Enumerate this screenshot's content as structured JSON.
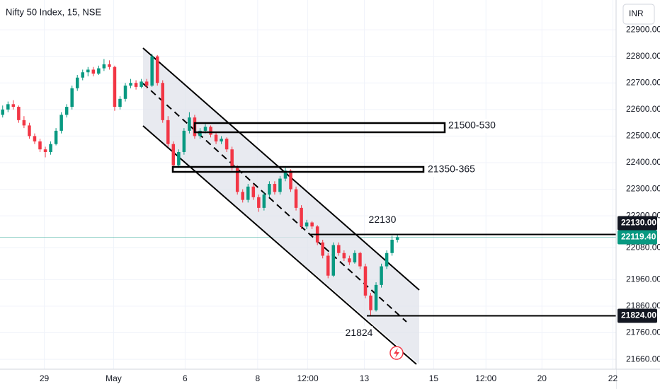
{
  "chart_data": {
    "type": "candlestick",
    "title": "Nifty 50 Index, 15, NSE",
    "currency": "INR",
    "up_color": "#089981",
    "down_color": "#f23645",
    "xlim": [
      -0.5,
      115
    ],
    "ylim": [
      21623,
      23012
    ],
    "xticks": [
      {
        "value": 7.8,
        "label": "29"
      },
      {
        "value": 20.8,
        "label": "May"
      },
      {
        "value": 34.2,
        "label": "6"
      },
      {
        "value": 47.8,
        "label": "8"
      },
      {
        "value": 57.2,
        "label": "12:00"
      },
      {
        "value": 67.8,
        "label": "13"
      },
      {
        "value": 80.8,
        "label": "15"
      },
      {
        "value": 90.6,
        "label": "12:00"
      },
      {
        "value": 101.1,
        "label": "20"
      },
      {
        "value": 114.4,
        "label": "22"
      }
    ],
    "yticks": [
      {
        "value": 22900,
        "label": "22900.00"
      },
      {
        "value": 22800,
        "label": "22800.00"
      },
      {
        "value": 22700,
        "label": "22700.00"
      },
      {
        "value": 22600,
        "label": "22600.00"
      },
      {
        "value": 22500,
        "label": "22500.00"
      },
      {
        "value": 22400,
        "label": "22400.00"
      },
      {
        "value": 22300,
        "label": "22300.00"
      },
      {
        "value": 22200,
        "label": "22200.00"
      },
      {
        "value": 22080,
        "label": "22080.00"
      },
      {
        "value": 21960,
        "label": "21960.00"
      },
      {
        "value": 21860,
        "label": "21860.00"
      },
      {
        "value": 21760,
        "label": "21760.00"
      },
      {
        "value": 21660,
        "label": "21660.00"
      }
    ],
    "candles": [
      [
        22580,
        22615,
        22570,
        22600
      ],
      [
        22600,
        22630,
        22590,
        22620
      ],
      [
        22620,
        22635,
        22600,
        22610
      ],
      [
        22610,
        22615,
        22550,
        22560
      ],
      [
        22560,
        22575,
        22530,
        22540
      ],
      [
        22540,
        22550,
        22490,
        22500
      ],
      [
        22500,
        22510,
        22470,
        22480
      ],
      [
        22480,
        22490,
        22440,
        22450
      ],
      [
        22450,
        22460,
        22420,
        22440
      ],
      [
        22440,
        22480,
        22430,
        22470
      ],
      [
        22470,
        22530,
        22465,
        22520
      ],
      [
        22520,
        22590,
        22510,
        22580
      ],
      [
        22580,
        22620,
        22570,
        22610
      ],
      [
        22610,
        22690,
        22600,
        22680
      ],
      [
        22680,
        22730,
        22670,
        22720
      ],
      [
        22720,
        22750,
        22710,
        22740
      ],
      [
        22740,
        22760,
        22725,
        22750
      ],
      [
        22750,
        22760,
        22725,
        22735
      ],
      [
        22735,
        22765,
        22730,
        22755
      ],
      [
        22755,
        22790,
        22745,
        22770
      ],
      [
        22770,
        22785,
        22750,
        22760
      ],
      [
        22760,
        22765,
        22595,
        22610
      ],
      [
        22610,
        22650,
        22600,
        22640
      ],
      [
        22640,
        22700,
        22630,
        22690
      ],
      [
        22690,
        22715,
        22680,
        22700
      ],
      [
        22700,
        22710,
        22675,
        22685
      ],
      [
        22685,
        22715,
        22680,
        22705
      ],
      [
        22705,
        22715,
        22680,
        22690
      ],
      [
        22690,
        22810,
        22685,
        22800
      ],
      [
        22800,
        22805,
        22690,
        22700
      ],
      [
        22700,
        22710,
        22550,
        22560
      ],
      [
        22560,
        22575,
        22460,
        22470
      ],
      [
        22470,
        22480,
        22370,
        22390
      ],
      [
        22390,
        22450,
        22380,
        22440
      ],
      [
        22440,
        22530,
        22430,
        22520
      ],
      [
        22520,
        22590,
        22510,
        22570
      ],
      [
        22570,
        22580,
        22490,
        22500
      ],
      [
        22500,
        22530,
        22490,
        22520
      ],
      [
        22520,
        22545,
        22510,
        22535
      ],
      [
        22535,
        22540,
        22495,
        22505
      ],
      [
        22505,
        22515,
        22470,
        22480
      ],
      [
        22480,
        22500,
        22470,
        22490
      ],
      [
        22490,
        22495,
        22440,
        22450
      ],
      [
        22450,
        22460,
        22370,
        22380
      ],
      [
        22380,
        22390,
        22280,
        22290
      ],
      [
        22290,
        22300,
        22250,
        22260
      ],
      [
        22260,
        22320,
        22250,
        22310
      ],
      [
        22310,
        22320,
        22260,
        22270
      ],
      [
        22270,
        22280,
        22215,
        22230
      ],
      [
        22230,
        22290,
        22220,
        22280
      ],
      [
        22280,
        22330,
        22270,
        22320
      ],
      [
        22320,
        22330,
        22280,
        22290
      ],
      [
        22290,
        22350,
        22280,
        22340
      ],
      [
        22340,
        22380,
        22330,
        22370
      ],
      [
        22370,
        22375,
        22290,
        22300
      ],
      [
        22300,
        22310,
        22220,
        22230
      ],
      [
        22230,
        22240,
        22150,
        22160
      ],
      [
        22160,
        22185,
        22150,
        22175
      ],
      [
        22175,
        22180,
        22150,
        22160
      ],
      [
        22160,
        22165,
        22090,
        22100
      ],
      [
        22100,
        22110,
        22040,
        22050
      ],
      [
        22050,
        22060,
        21965,
        21975
      ],
      [
        21975,
        22100,
        21970,
        22090
      ],
      [
        22090,
        22100,
        22050,
        22060
      ],
      [
        22060,
        22070,
        22030,
        22040
      ],
      [
        22040,
        22050,
        22015,
        22025
      ],
      [
        22025,
        22070,
        22020,
        22060
      ],
      [
        22060,
        22065,
        22000,
        22010
      ],
      [
        22010,
        22020,
        21890,
        21900
      ],
      [
        21900,
        21910,
        21824,
        21845
      ],
      [
        21845,
        21950,
        21840,
        21940
      ],
      [
        21940,
        22020,
        21930,
        22010
      ],
      [
        22010,
        22070,
        22000,
        22060
      ],
      [
        22060,
        22125,
        22050,
        22110
      ],
      [
        22110,
        22130,
        22100,
        22119.4
      ]
    ],
    "price_lines": [
      {
        "value": 22130,
        "label": "22130.00",
        "annotation": 22130
      },
      {
        "value": 21824,
        "label": "21824.00",
        "annotation": 21824
      }
    ],
    "last_price": {
      "value": 22119.4,
      "label": "22119.40"
    },
    "zones": [
      "21500-530",
      "21350-365"
    ]
  }
}
